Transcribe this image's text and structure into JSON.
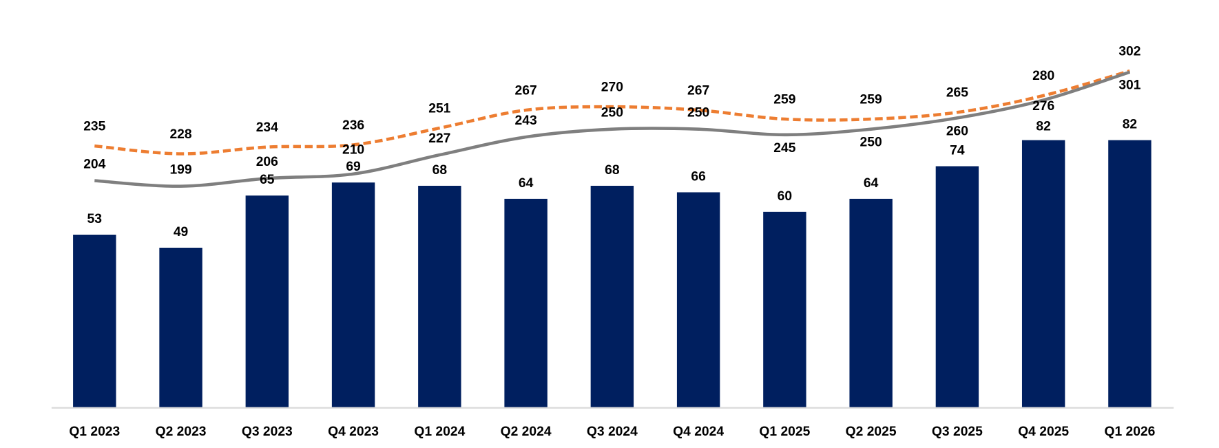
{
  "chart_data": {
    "type": "bar",
    "categories": [
      "Q1 2023",
      "Q2 2023",
      "Q3 2023",
      "Q4 2023",
      "Q1 2024",
      "Q2 2024",
      "Q3 2024",
      "Q4 2024",
      "Q1 2025",
      "Q2 2025",
      "Q3 2025",
      "Q4 2025",
      "Q1 2026"
    ],
    "bar_series": {
      "values": [
        53,
        49,
        65,
        69,
        68,
        64,
        68,
        66,
        60,
        64,
        74,
        82,
        82
      ],
      "color": "#001F5F",
      "ylim": [
        0,
        125
      ]
    },
    "line_series": [
      {
        "values": [
          235,
          228,
          234,
          236,
          251,
          267,
          270,
          267,
          259,
          259,
          265,
          280,
          302
        ],
        "color": "#ED7D31",
        "style": "dashed",
        "smooth": true
      },
      {
        "values": [
          204,
          199,
          206,
          210,
          227,
          243,
          250,
          250,
          245,
          250,
          260,
          276,
          301
        ],
        "color": "#7F7F7F",
        "style": "solid",
        "smooth": true
      }
    ],
    "line_ylim": [
      0,
      364
    ],
    "secondary_axis": true,
    "grid": false,
    "legend": "none",
    "axis_color": "#D9D9D9",
    "title": "",
    "xlabel": "",
    "ylabel": ""
  }
}
